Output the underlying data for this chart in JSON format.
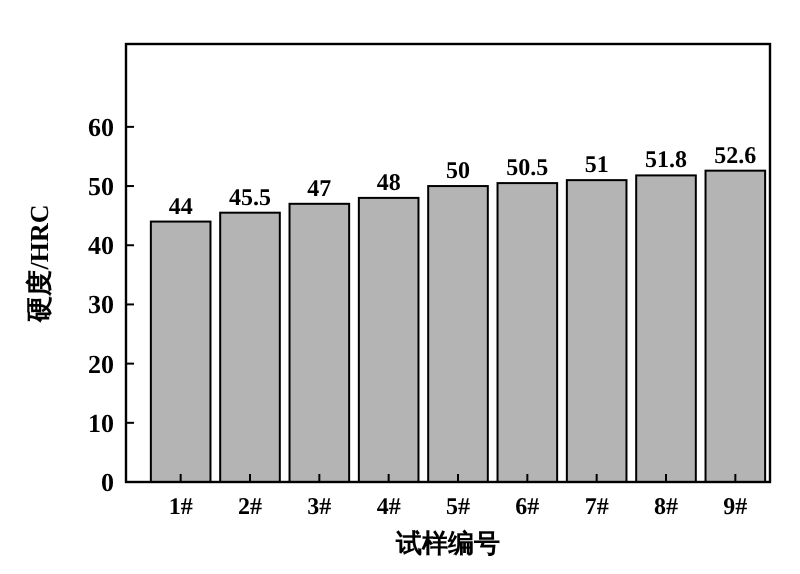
{
  "chart_data": {
    "type": "bar",
    "xlabel": "试样编号",
    "ylabel": "硬度/HRC",
    "categories": [
      "1#",
      "2#",
      "3#",
      "4#",
      "5#",
      "6#",
      "7#",
      "8#",
      "9#"
    ],
    "values": [
      44,
      45.5,
      47,
      48,
      50,
      50.5,
      51,
      51.8,
      52.6
    ],
    "color": "#b4b4b4",
    "data_labels": true,
    "grid": false,
    "ylim": [
      0,
      74
    ],
    "yticks": [
      0,
      10,
      20,
      30,
      40,
      50,
      60
    ]
  }
}
